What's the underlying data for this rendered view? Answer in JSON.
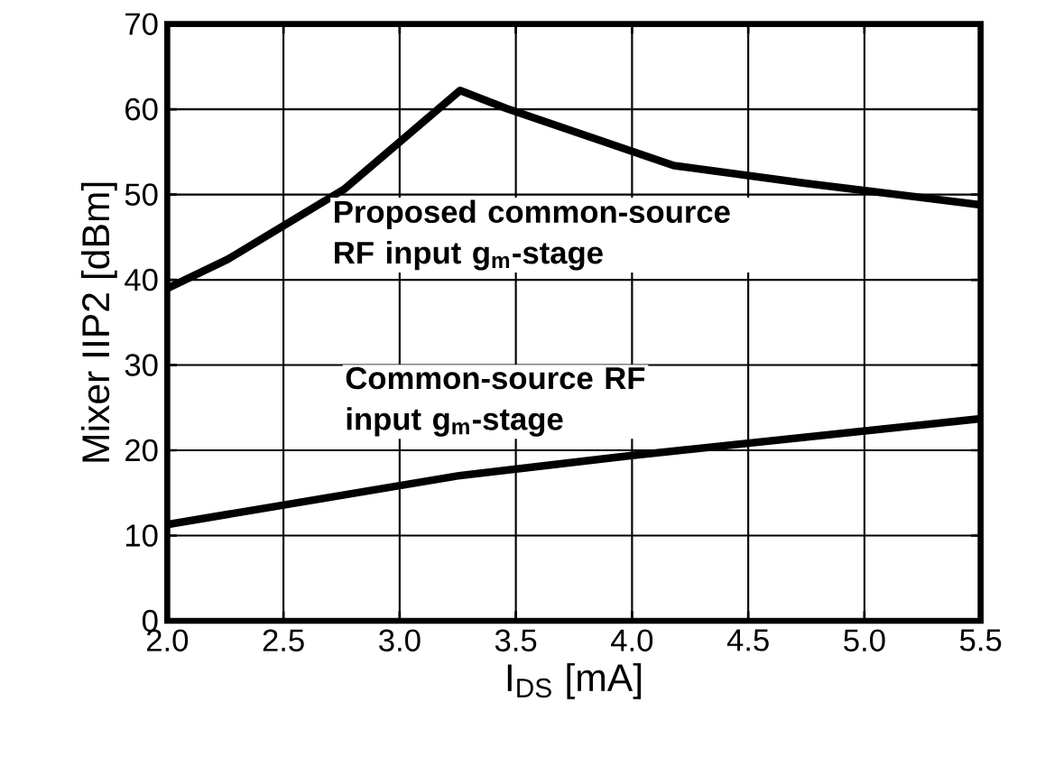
{
  "chart_data": {
    "type": "line",
    "xlabel": "I$_{DS}$ [mA]",
    "ylabel": "Mixer IIP2 [dBm]",
    "xlim": [
      2.0,
      5.5
    ],
    "ylim": [
      0,
      70
    ],
    "xticks": [
      {
        "value": 2.0,
        "label": "2.0"
      },
      {
        "value": 2.5,
        "label": "2.5"
      },
      {
        "value": 3.0,
        "label": "3.0"
      },
      {
        "value": 3.5,
        "label": "3.5"
      },
      {
        "value": 4.0,
        "label": "4.0"
      },
      {
        "value": 4.5,
        "label": "4.5"
      },
      {
        "value": 5.0,
        "label": "5.0"
      },
      {
        "value": 5.5,
        "label": "5.5"
      }
    ],
    "yticks": [
      0,
      10,
      20,
      30,
      40,
      50,
      60,
      70
    ],
    "grid": true,
    "legend": false,
    "marker": "none",
    "line_style": "solid",
    "series": [
      {
        "name": "Proposed common-source RF input g$_{m}$-stage",
        "color": "#000000",
        "x": [
          2.0,
          2.26,
          2.76,
          3.26,
          3.46,
          4.18,
          4.75,
          5.5
        ],
        "values": [
          39,
          42.4,
          50.6,
          62.2,
          60.1,
          53.4,
          51.3,
          48.8
        ]
      },
      {
        "name": "Common-source RF input g$_{m}$-stage",
        "color": "#000000",
        "x": [
          2.0,
          3.25,
          4.0,
          5.5
        ],
        "values": [
          11.3,
          17.0,
          19.4,
          23.7
        ]
      }
    ]
  }
}
